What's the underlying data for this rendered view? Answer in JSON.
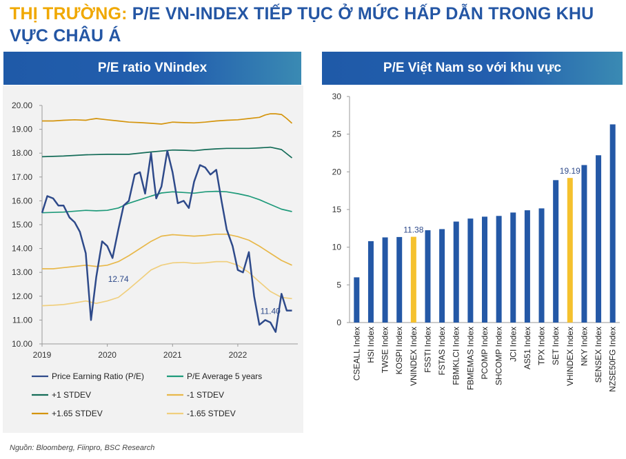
{
  "title": {
    "highlight": "THỊ TRƯỜNG:",
    "rest": " P/E VN-INDEX TIẾP TỤC Ở MỨC HẤP DẪN TRONG KHU VỰC CHÂU Á"
  },
  "headers": {
    "left": "P/E ratio VNindex",
    "right": "P/E Việt Nam so với khu vực"
  },
  "source": "Nguồn: Bloomberg, Fiinpro, BSC Research",
  "colors": {
    "pe": "#2e4a8a",
    "avg": "#1e9a7a",
    "plus1": "#146c58",
    "minus1": "#e8b84a",
    "plus165": "#d4940c",
    "minus165": "#f0cf7e",
    "bar": "#2458a6",
    "bar_highlight": "#f5c12e"
  },
  "chart_data": [
    {
      "type": "line",
      "x_ticks": [
        "2019",
        "2020",
        "2021",
        "2022"
      ],
      "xlim": [
        2019.0,
        2022.92
      ],
      "y_ticks": [
        "10.00",
        "11.00",
        "12.00",
        "13.00",
        "14.00",
        "15.00",
        "16.00",
        "17.00",
        "18.00",
        "19.00",
        "20.00"
      ],
      "ylim": [
        10,
        20
      ],
      "grid": false,
      "annotations": [
        {
          "text": "12.74",
          "x": 2020.17,
          "y": 12.74
        },
        {
          "text": "11.40",
          "x": 2022.5,
          "y": 11.4
        }
      ],
      "series": [
        {
          "name": "Price Earning Ratio (P/E)",
          "color": "#2e4a8a",
          "width": 2.5,
          "x": [
            2019.0,
            2019.08,
            2019.17,
            2019.25,
            2019.33,
            2019.42,
            2019.5,
            2019.58,
            2019.67,
            2019.75,
            2019.83,
            2019.92,
            2020.0,
            2020.08,
            2020.17,
            2020.25,
            2020.33,
            2020.42,
            2020.5,
            2020.58,
            2020.67,
            2020.71,
            2020.75,
            2020.83,
            2020.92,
            2021.0,
            2021.08,
            2021.17,
            2021.25,
            2021.33,
            2021.42,
            2021.5,
            2021.58,
            2021.67,
            2021.75,
            2021.83,
            2021.92,
            2022.0,
            2022.08,
            2022.17,
            2022.25,
            2022.33,
            2022.42,
            2022.5,
            2022.58,
            2022.67,
            2022.75,
            2022.83
          ],
          "y": [
            15.5,
            16.2,
            16.1,
            15.8,
            15.8,
            15.3,
            15.1,
            14.7,
            13.8,
            11.0,
            12.8,
            14.3,
            14.1,
            13.6,
            14.8,
            15.8,
            16.0,
            17.1,
            17.2,
            16.3,
            18.0,
            17.0,
            16.1,
            16.6,
            18.1,
            17.2,
            15.9,
            16.0,
            15.7,
            16.8,
            17.5,
            17.4,
            17.1,
            17.3,
            16.0,
            14.8,
            14.1,
            13.1,
            13.0,
            13.85,
            12.0,
            10.8,
            11.0,
            10.9,
            10.5,
            12.1,
            11.4,
            11.4
          ]
        },
        {
          "name": "P/E Average 5 years",
          "color": "#1e9a7a",
          "width": 1.7,
          "x": [
            2019.0,
            2019.33,
            2019.67,
            2019.83,
            2020.0,
            2020.17,
            2020.33,
            2020.5,
            2020.67,
            2020.83,
            2021.0,
            2021.17,
            2021.33,
            2021.5,
            2021.67,
            2021.83,
            2022.0,
            2022.17,
            2022.33,
            2022.5,
            2022.67,
            2022.83
          ],
          "y": [
            15.5,
            15.53,
            15.6,
            15.58,
            15.6,
            15.7,
            15.9,
            16.05,
            16.2,
            16.33,
            16.38,
            16.35,
            16.32,
            16.38,
            16.4,
            16.38,
            16.3,
            16.2,
            16.05,
            15.85,
            15.65,
            15.55
          ]
        },
        {
          "name": "+1 STDEV",
          "color": "#146c58",
          "width": 1.7,
          "x": [
            2019.0,
            2019.33,
            2019.67,
            2020.0,
            2020.33,
            2020.67,
            2021.0,
            2021.17,
            2021.33,
            2021.5,
            2021.67,
            2021.83,
            2022.0,
            2022.17,
            2022.33,
            2022.5,
            2022.67,
            2022.83
          ],
          "y": [
            17.85,
            17.88,
            17.93,
            17.95,
            17.95,
            18.05,
            18.13,
            18.12,
            18.1,
            18.15,
            18.18,
            18.2,
            18.2,
            18.2,
            18.22,
            18.25,
            18.15,
            17.8
          ]
        },
        {
          "name": "-1 STDEV",
          "color": "#e8b84a",
          "width": 1.7,
          "x": [
            2019.0,
            2019.17,
            2019.33,
            2019.5,
            2019.67,
            2019.83,
            2020.0,
            2020.17,
            2020.33,
            2020.5,
            2020.67,
            2020.83,
            2021.0,
            2021.17,
            2021.33,
            2021.5,
            2021.67,
            2021.83,
            2022.0,
            2022.17,
            2022.33,
            2022.5,
            2022.67,
            2022.83
          ],
          "y": [
            13.15,
            13.15,
            13.2,
            13.25,
            13.3,
            13.25,
            13.3,
            13.45,
            13.7,
            14.0,
            14.3,
            14.52,
            14.58,
            14.55,
            14.52,
            14.55,
            14.6,
            14.6,
            14.5,
            14.35,
            14.1,
            13.8,
            13.5,
            13.3
          ]
        },
        {
          "name": "+1.65 STDEV",
          "color": "#d4940c",
          "width": 1.7,
          "x": [
            2019.0,
            2019.17,
            2019.33,
            2019.5,
            2019.67,
            2019.75,
            2019.83,
            2020.0,
            2020.17,
            2020.33,
            2020.5,
            2020.67,
            2020.83,
            2021.0,
            2021.17,
            2021.33,
            2021.5,
            2021.67,
            2021.83,
            2022.0,
            2022.17,
            2022.33,
            2022.42,
            2022.5,
            2022.58,
            2022.67,
            2022.75,
            2022.83
          ],
          "y": [
            19.35,
            19.35,
            19.38,
            19.4,
            19.38,
            19.42,
            19.45,
            19.4,
            19.35,
            19.3,
            19.28,
            19.25,
            19.22,
            19.3,
            19.28,
            19.27,
            19.3,
            19.35,
            19.38,
            19.4,
            19.45,
            19.5,
            19.6,
            19.65,
            19.65,
            19.62,
            19.45,
            19.25
          ]
        },
        {
          "name": "-1.65 STDEV",
          "color": "#f0cf7e",
          "width": 1.7,
          "x": [
            2019.0,
            2019.17,
            2019.33,
            2019.5,
            2019.67,
            2019.83,
            2020.0,
            2020.17,
            2020.33,
            2020.5,
            2020.67,
            2020.83,
            2021.0,
            2021.17,
            2021.33,
            2021.5,
            2021.67,
            2021.83,
            2022.0,
            2022.17,
            2022.33,
            2022.5,
            2022.67,
            2022.83
          ],
          "y": [
            11.6,
            11.62,
            11.65,
            11.72,
            11.8,
            11.7,
            11.8,
            11.95,
            12.3,
            12.7,
            13.1,
            13.3,
            13.4,
            13.42,
            13.38,
            13.4,
            13.45,
            13.45,
            13.3,
            13.0,
            12.6,
            12.2,
            11.95,
            11.9
          ]
        }
      ]
    },
    {
      "type": "bar",
      "categories": [
        "CSEALL Index",
        "HSI Index",
        "TWSE Index",
        "KOSPI Index",
        "VNINDEX Index",
        "FSSTI Index",
        "FSTAS Index",
        "FBMKLCI Index",
        "FBMEMAS Index",
        "PCOMP Index",
        "SHCOMP Index",
        "JCI Index",
        "AS51 Index",
        "TPX Index",
        "SET Index",
        "VHINDEX Index",
        "NKY Index",
        "SENSEX Index",
        "NZSE50FG Index"
      ],
      "values": [
        6.0,
        10.8,
        11.3,
        11.35,
        11.38,
        12.25,
        12.4,
        13.4,
        13.8,
        14.05,
        14.15,
        14.6,
        14.9,
        15.15,
        18.9,
        19.19,
        20.9,
        22.2,
        26.3
      ],
      "highlight_indices": [
        4,
        15
      ],
      "data_labels": [
        {
          "index": 4,
          "text": "11.38"
        },
        {
          "index": 15,
          "text": "19.19"
        }
      ],
      "y_ticks": [
        "0",
        "5",
        "10",
        "15",
        "20",
        "25",
        "30"
      ],
      "ylim": [
        0,
        30
      ],
      "grid": false
    }
  ]
}
